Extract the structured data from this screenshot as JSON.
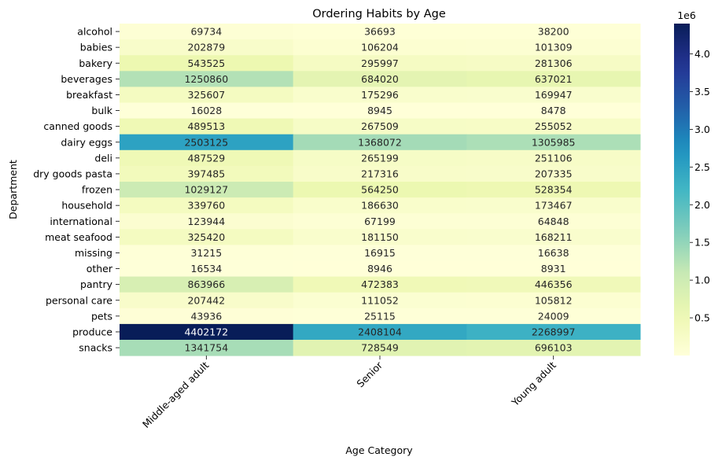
{
  "chart_data": {
    "type": "heatmap",
    "title": "Ordering Habits by Age",
    "xlabel": "Age Category",
    "ylabel": "Department",
    "columns": [
      "Middle-aged adult",
      "Senior",
      "Young adult"
    ],
    "rows": [
      "alcohol",
      "babies",
      "bakery",
      "beverages",
      "breakfast",
      "bulk",
      "canned goods",
      "dairy eggs",
      "deli",
      "dry goods pasta",
      "frozen",
      "household",
      "international",
      "meat seafood",
      "missing",
      "other",
      "pantry",
      "personal care",
      "pets",
      "produce",
      "snacks"
    ],
    "values": [
      [
        69734,
        36693,
        38200
      ],
      [
        202879,
        106204,
        101309
      ],
      [
        543525,
        295997,
        281306
      ],
      [
        1250860,
        684020,
        637021
      ],
      [
        325607,
        175296,
        169947
      ],
      [
        16028,
        8945,
        8478
      ],
      [
        489513,
        267509,
        255052
      ],
      [
        2503125,
        1368072,
        1305985
      ],
      [
        487529,
        265199,
        251106
      ],
      [
        397485,
        217316,
        207335
      ],
      [
        1029127,
        564250,
        528354
      ],
      [
        339760,
        186630,
        173467
      ],
      [
        123944,
        67199,
        64848
      ],
      [
        325420,
        181150,
        168211
      ],
      [
        31215,
        16915,
        16638
      ],
      [
        16534,
        8946,
        8931
      ],
      [
        863966,
        472383,
        446356
      ],
      [
        207442,
        111052,
        105812
      ],
      [
        43936,
        25115,
        24009
      ],
      [
        4402172,
        2408104,
        2268997
      ],
      [
        1341754,
        728549,
        696103
      ]
    ],
    "colormap": "YlGnBu",
    "colorbar": {
      "ticks": [
        0.5,
        1.0,
        1.5,
        2.0,
        2.5,
        3.0,
        3.5,
        4.0
      ],
      "tick_labels": [
        "0.5",
        "1.0",
        "1.5",
        "2.0",
        "2.5",
        "3.0",
        "3.5",
        "4.0"
      ],
      "multiplier_label": "1e6",
      "range": [
        0,
        4402172
      ]
    }
  }
}
